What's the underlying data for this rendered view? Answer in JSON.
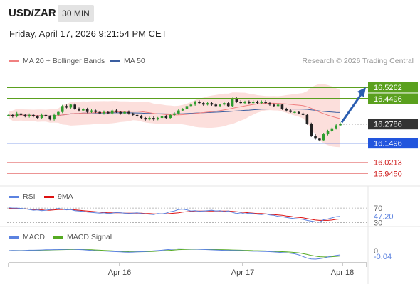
{
  "header": {
    "symbol": "USD/ZAR",
    "timeframe": "30 MIN",
    "datetime": "Friday, April 17, 2026 9:21:54 PM CET"
  },
  "legend": {
    "ma20_label": "MA 20 + Bollinger Bands",
    "ma50_label": "MA 50",
    "credit": "Research © 2026 Trading Central",
    "rsi_label": "RSI",
    "rsi_ma_label": "9MA",
    "macd_label": "MACD",
    "macd_signal_label": "MACD Signal"
  },
  "colors": {
    "resistance": "#5aa01e",
    "support": "#2255dd",
    "target": "#e05050",
    "ma20": "#f08080",
    "ma50": "#3a5ea0",
    "rsi": "#5b82e0",
    "rsi_ma": "#dd1111",
    "macd": "#5b82e0",
    "macd_signal": "#55aa22",
    "arrow": "#2a5db0"
  },
  "chart_data": [
    {
      "type": "candlestick",
      "ylim": [
        15.88,
        16.66
      ],
      "price_levels": [
        {
          "value": 16.5262,
          "label": "16.5262",
          "kind": "resistance"
        },
        {
          "value": 16.4496,
          "label": "16.4496",
          "kind": "resistance"
        },
        {
          "value": 16.2786,
          "label": "16.2786",
          "kind": "last"
        },
        {
          "value": 16.1496,
          "label": "16.1496",
          "kind": "support"
        },
        {
          "value": 16.0213,
          "label": "16.0213",
          "kind": "target"
        },
        {
          "value": 15.945,
          "label": "15.9450",
          "kind": "target"
        }
      ],
      "x_ticks": [
        "Apr 16",
        "Apr 17",
        "Apr 18"
      ],
      "close": [
        16.34,
        16.33,
        16.35,
        16.34,
        16.33,
        16.34,
        16.33,
        16.32,
        16.34,
        16.33,
        16.31,
        16.34,
        16.36,
        16.4,
        16.39,
        16.41,
        16.38,
        16.37,
        16.38,
        16.36,
        16.37,
        16.36,
        16.35,
        16.36,
        16.35,
        16.37,
        16.36,
        16.35,
        16.36,
        16.35,
        16.34,
        16.33,
        16.32,
        16.31,
        16.32,
        16.31,
        16.32,
        16.33,
        16.32,
        16.34,
        16.35,
        16.37,
        16.38,
        16.4,
        16.41,
        16.43,
        16.42,
        16.41,
        16.42,
        16.41,
        16.4,
        16.41,
        16.42,
        16.4,
        16.45,
        16.43,
        16.42,
        16.43,
        16.42,
        16.43,
        16.42,
        16.43,
        16.42,
        16.41,
        16.4,
        16.41,
        16.38,
        16.37,
        16.36,
        16.36,
        16.35,
        16.34,
        16.28,
        16.2,
        16.18,
        16.17,
        16.21,
        16.23,
        16.25,
        16.27,
        16.28
      ]
    },
    {
      "type": "line",
      "name": "RSI",
      "ylim": [
        25,
        80
      ],
      "y_ticks": [
        30,
        70
      ],
      "last_value": "47.20",
      "values": [
        71,
        70,
        70,
        69,
        68,
        66,
        64,
        65,
        63,
        64,
        66,
        67,
        69,
        67,
        65,
        66,
        63,
        62,
        61,
        59,
        58,
        57,
        56,
        57,
        55,
        56,
        58,
        57,
        56,
        55,
        56,
        57,
        55,
        54,
        53,
        52,
        55,
        54,
        56,
        60,
        62,
        66,
        67,
        65,
        62,
        63,
        61,
        62,
        63,
        64,
        62,
        63,
        60,
        62,
        58,
        55,
        57,
        54,
        56,
        55,
        53,
        52,
        54,
        51,
        50,
        47,
        46,
        44,
        42,
        41,
        40,
        39,
        36,
        34,
        32,
        31,
        38,
        40,
        43,
        46,
        47.2
      ],
      "ma": [
        69,
        69,
        69,
        68,
        68,
        67,
        66,
        65,
        65,
        64,
        64,
        65,
        66,
        66,
        66,
        66,
        65,
        64,
        63,
        62,
        61,
        60,
        59,
        58,
        57,
        57,
        57,
        57,
        56,
        56,
        56,
        56,
        56,
        55,
        55,
        54,
        54,
        54,
        54,
        55,
        56,
        57,
        59,
        60,
        61,
        62,
        62,
        62,
        62,
        62,
        62,
        62,
        62,
        62,
        61,
        60,
        59,
        58,
        57,
        56,
        55,
        55,
        54,
        53,
        52,
        51,
        50,
        48,
        47,
        45,
        44,
        43,
        41,
        39,
        37,
        36,
        36,
        36,
        37,
        39,
        40
      ]
    },
    {
      "type": "line",
      "name": "MACD",
      "ylim": [
        -0.1,
        0.06
      ],
      "y_ticks": [
        0
      ],
      "last_value": "-0.04",
      "values": [
        0.0,
        0.002,
        0.001,
        0.0,
        0.002,
        0.004,
        0.004,
        0.005,
        0.006,
        0.008,
        0.008,
        0.009,
        0.01,
        0.012,
        0.013,
        0.015,
        0.013,
        0.01,
        0.008,
        0.005,
        0.002,
        -0.001,
        -0.003,
        -0.004,
        -0.006,
        -0.008,
        -0.01,
        -0.012,
        -0.014,
        -0.015,
        -0.014,
        -0.012,
        -0.01,
        -0.008,
        -0.005,
        -0.002,
        0.001,
        0.004,
        0.008,
        0.012,
        0.015,
        0.018,
        0.017,
        0.016,
        0.015,
        0.014,
        0.013,
        0.011,
        0.009,
        0.007,
        0.006,
        0.004,
        0.003,
        0.002,
        0.002,
        0.001,
        0.0,
        -0.002,
        -0.004,
        -0.006,
        -0.006,
        -0.007,
        -0.008,
        -0.01,
        -0.013,
        -0.015,
        -0.018,
        -0.021,
        -0.025,
        -0.03,
        -0.04,
        -0.055,
        -0.07,
        -0.078,
        -0.08,
        -0.076,
        -0.07,
        -0.06,
        -0.052,
        -0.045,
        -0.04
      ],
      "signal": [
        0.0,
        0.001,
        0.001,
        0.001,
        0.001,
        0.002,
        0.002,
        0.003,
        0.004,
        0.005,
        0.006,
        0.007,
        0.008,
        0.009,
        0.01,
        0.011,
        0.011,
        0.011,
        0.01,
        0.009,
        0.008,
        0.006,
        0.004,
        0.002,
        0.0,
        -0.002,
        -0.004,
        -0.006,
        -0.008,
        -0.01,
        -0.011,
        -0.011,
        -0.011,
        -0.01,
        -0.009,
        -0.007,
        -0.005,
        -0.003,
        0.0,
        0.003,
        0.006,
        0.009,
        0.011,
        0.012,
        0.013,
        0.013,
        0.013,
        0.013,
        0.012,
        0.011,
        0.01,
        0.009,
        0.008,
        0.007,
        0.006,
        0.005,
        0.004,
        0.003,
        0.002,
        0.0,
        -0.001,
        -0.002,
        -0.003,
        -0.005,
        -0.006,
        -0.008,
        -0.01,
        -0.012,
        -0.014,
        -0.017,
        -0.021,
        -0.028,
        -0.036,
        -0.045,
        -0.052,
        -0.057,
        -0.059,
        -0.059,
        -0.057,
        -0.054,
        -0.051
      ]
    }
  ]
}
